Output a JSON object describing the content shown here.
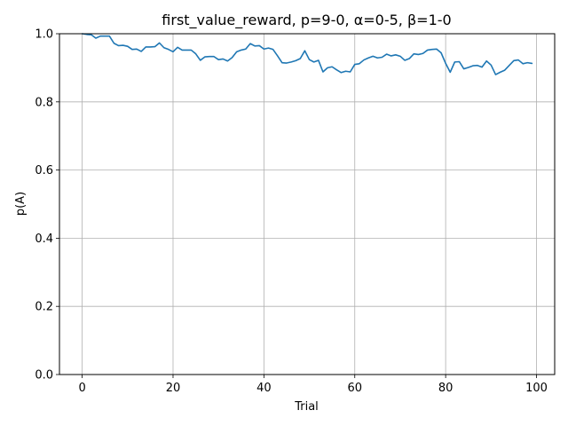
{
  "chart_data": {
    "type": "line",
    "title": "first_value_reward, p=9-0, α=0-5, β=1-0",
    "xlabel": "Trial",
    "ylabel": "p(A)",
    "xlim": [
      -5,
      104
    ],
    "ylim": [
      0.0,
      1.0
    ],
    "xticks": [
      0,
      20,
      40,
      60,
      80,
      100
    ],
    "yticks": [
      0.0,
      0.2,
      0.4,
      0.6,
      0.8,
      1.0
    ],
    "xtick_labels": [
      "0",
      "20",
      "40",
      "60",
      "80",
      "100"
    ],
    "ytick_labels": [
      "0.0",
      "0.2",
      "0.4",
      "0.6",
      "0.8",
      "1.0"
    ],
    "grid": true,
    "line_color": "#1f77b4",
    "series": [
      {
        "x": [
          0,
          1,
          2,
          3,
          4,
          5,
          6,
          7,
          8,
          9,
          10,
          11,
          12,
          13,
          14,
          15,
          16,
          17,
          18,
          19,
          20,
          21,
          22,
          23,
          24,
          25,
          26,
          27,
          28,
          29,
          30,
          31,
          32,
          33,
          34,
          35,
          36,
          37,
          38,
          39,
          40,
          41,
          42,
          43,
          44,
          45,
          46,
          47,
          48,
          49,
          50,
          51,
          52,
          53,
          54,
          55,
          56,
          57,
          58,
          59,
          60,
          61,
          62,
          63,
          64,
          65,
          66,
          67,
          68,
          69,
          70,
          71,
          72,
          73,
          74,
          75,
          76,
          77,
          78,
          79,
          80,
          81,
          82,
          83,
          84,
          85,
          86,
          87,
          88,
          89,
          90,
          91,
          92,
          93,
          94,
          95,
          96,
          97,
          98,
          99
        ],
        "values": [
          1.0,
          0.998,
          0.997,
          0.987,
          0.993,
          0.993,
          0.993,
          0.972,
          0.965,
          0.966,
          0.963,
          0.954,
          0.955,
          0.948,
          0.961,
          0.961,
          0.962,
          0.973,
          0.959,
          0.954,
          0.947,
          0.96,
          0.952,
          0.952,
          0.952,
          0.941,
          0.922,
          0.932,
          0.933,
          0.933,
          0.924,
          0.926,
          0.92,
          0.93,
          0.947,
          0.952,
          0.955,
          0.971,
          0.964,
          0.965,
          0.955,
          0.958,
          0.954,
          0.935,
          0.915,
          0.914,
          0.917,
          0.921,
          0.927,
          0.95,
          0.924,
          0.917,
          0.922,
          0.888,
          0.9,
          0.903,
          0.894,
          0.886,
          0.89,
          0.888,
          0.91,
          0.912,
          0.923,
          0.929,
          0.934,
          0.929,
          0.931,
          0.94,
          0.935,
          0.938,
          0.934,
          0.922,
          0.927,
          0.941,
          0.939,
          0.942,
          0.952,
          0.954,
          0.955,
          0.944,
          0.913,
          0.887,
          0.917,
          0.918,
          0.897,
          0.901,
          0.906,
          0.907,
          0.902,
          0.92,
          0.908,
          0.88,
          0.887,
          0.893,
          0.907,
          0.921,
          0.923,
          0.912,
          0.915,
          0.913
        ]
      }
    ]
  }
}
